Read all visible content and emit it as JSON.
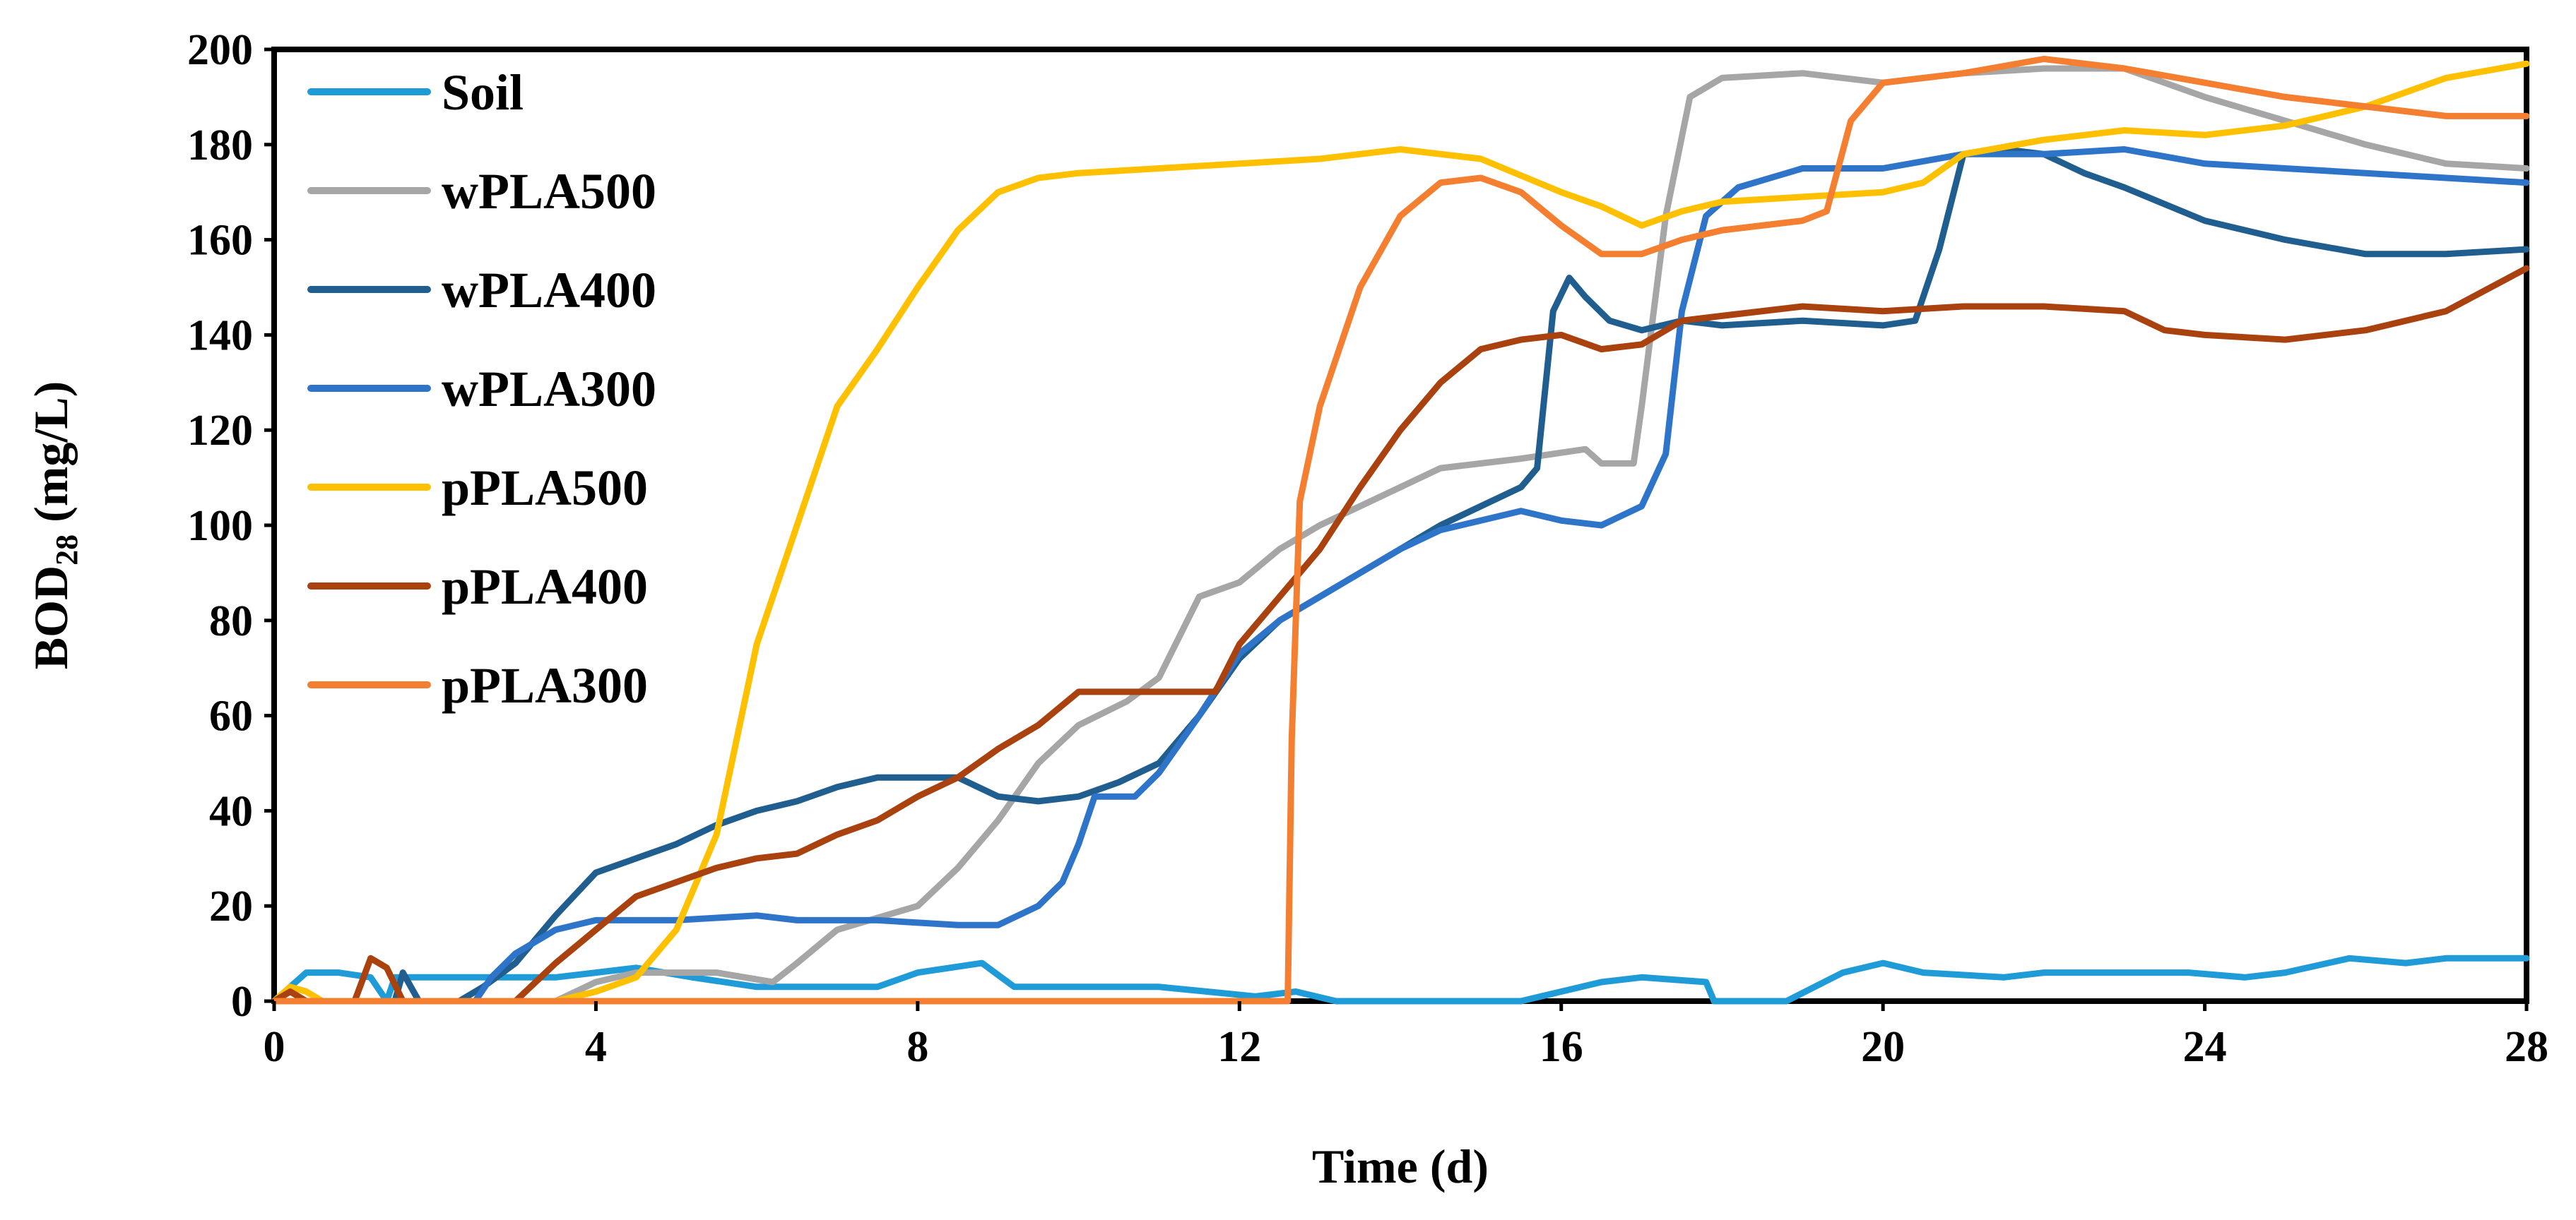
{
  "chart_data": {
    "type": "line",
    "title": "",
    "xlabel": "Time (d)",
    "ylabel": {
      "main": "BOD",
      "subscript": "28",
      "unit": " (mg/L)"
    },
    "xlim": [
      0,
      28
    ],
    "ylim": [
      0,
      200
    ],
    "x_ticks": [
      "0",
      "4",
      "8",
      "12",
      "16",
      "20",
      "24",
      "28"
    ],
    "y_ticks": [
      "0",
      "20",
      "40",
      "60",
      "80",
      "100",
      "120",
      "140",
      "160",
      "180",
      "200"
    ],
    "grid": false,
    "legend_position": "top-left",
    "series": [
      {
        "name": "Soil",
        "color": "#1F9BD7",
        "points": [
          [
            0,
            0
          ],
          [
            0.2,
            3
          ],
          [
            0.4,
            6
          ],
          [
            0.8,
            6
          ],
          [
            1.2,
            5
          ],
          [
            1.4,
            0
          ],
          [
            1.5,
            5
          ],
          [
            3.5,
            5
          ],
          [
            4.0,
            6
          ],
          [
            4.5,
            7
          ],
          [
            5.2,
            5
          ],
          [
            6.0,
            3
          ],
          [
            7.5,
            3
          ],
          [
            8.0,
            6
          ],
          [
            8.8,
            8
          ],
          [
            9.2,
            3
          ],
          [
            10,
            3
          ],
          [
            11,
            3
          ],
          [
            11.6,
            2
          ],
          [
            12.2,
            1
          ],
          [
            12.7,
            2
          ],
          [
            13.2,
            0
          ],
          [
            15.5,
            0
          ],
          [
            16.5,
            4
          ],
          [
            17.0,
            5
          ],
          [
            17.8,
            4
          ],
          [
            17.9,
            0
          ],
          [
            18.8,
            0
          ],
          [
            19.5,
            6
          ],
          [
            20.0,
            8
          ],
          [
            20.5,
            6
          ],
          [
            21.5,
            5
          ],
          [
            22.0,
            6
          ],
          [
            23.8,
            6
          ],
          [
            24.5,
            5
          ],
          [
            25.0,
            6
          ],
          [
            25.8,
            9
          ],
          [
            26.5,
            8
          ],
          [
            27.0,
            9
          ],
          [
            28,
            9
          ]
        ]
      },
      {
        "name": "wPLA500",
        "color": "#A6A6A6",
        "points": [
          [
            0,
            0
          ],
          [
            3.5,
            0
          ],
          [
            4.0,
            4
          ],
          [
            4.5,
            6
          ],
          [
            5.5,
            6
          ],
          [
            6.2,
            4
          ],
          [
            6.5,
            8
          ],
          [
            7.0,
            15
          ],
          [
            8.0,
            20
          ],
          [
            8.5,
            28
          ],
          [
            9.0,
            38
          ],
          [
            9.5,
            50
          ],
          [
            10.0,
            58
          ],
          [
            10.6,
            63
          ],
          [
            11.0,
            68
          ],
          [
            11.5,
            85
          ],
          [
            12.0,
            88
          ],
          [
            12.5,
            95
          ],
          [
            13.0,
            100
          ],
          [
            13.5,
            104
          ],
          [
            14.0,
            108
          ],
          [
            14.5,
            112
          ],
          [
            15.5,
            114
          ],
          [
            16.3,
            116
          ],
          [
            16.5,
            113
          ],
          [
            16.9,
            113
          ],
          [
            17.0,
            125
          ],
          [
            17.3,
            165
          ],
          [
            17.6,
            190
          ],
          [
            18.0,
            194
          ],
          [
            19.0,
            195
          ],
          [
            20,
            193
          ],
          [
            21,
            195
          ],
          [
            22,
            196
          ],
          [
            23,
            196
          ],
          [
            24,
            190
          ],
          [
            25,
            185
          ],
          [
            26,
            180
          ],
          [
            27,
            176
          ],
          [
            28,
            175
          ]
        ]
      },
      {
        "name": "wPLA400",
        "color": "#1F5E8E",
        "points": [
          [
            0,
            0
          ],
          [
            1.5,
            0
          ],
          [
            1.6,
            6
          ],
          [
            1.8,
            0
          ],
          [
            2.3,
            0
          ],
          [
            2.6,
            3
          ],
          [
            3,
            8
          ],
          [
            3.5,
            18
          ],
          [
            4.0,
            27
          ],
          [
            4.5,
            30
          ],
          [
            5.0,
            33
          ],
          [
            5.5,
            37
          ],
          [
            6.0,
            40
          ],
          [
            6.5,
            42
          ],
          [
            7.0,
            45
          ],
          [
            7.5,
            47
          ],
          [
            8.5,
            47
          ],
          [
            9.0,
            43
          ],
          [
            9.5,
            42
          ],
          [
            10.0,
            43
          ],
          [
            10.5,
            46
          ],
          [
            11,
            50
          ],
          [
            11.5,
            60
          ],
          [
            12,
            72
          ],
          [
            12.5,
            80
          ],
          [
            13,
            85
          ],
          [
            13.5,
            90
          ],
          [
            14,
            95
          ],
          [
            14.5,
            100
          ],
          [
            15,
            104
          ],
          [
            15.5,
            108
          ],
          [
            15.7,
            112
          ],
          [
            15.9,
            145
          ],
          [
            16.1,
            152
          ],
          [
            16.3,
            148
          ],
          [
            16.6,
            143
          ],
          [
            17.0,
            141
          ],
          [
            17.5,
            143
          ],
          [
            18,
            142
          ],
          [
            19,
            143
          ],
          [
            20,
            142
          ],
          [
            20.4,
            143
          ],
          [
            20.7,
            158
          ],
          [
            21.0,
            178
          ],
          [
            21.5,
            179
          ],
          [
            22,
            178
          ],
          [
            22.5,
            174
          ],
          [
            23,
            171
          ],
          [
            24,
            164
          ],
          [
            25,
            160
          ],
          [
            26,
            157
          ],
          [
            27,
            157
          ],
          [
            28,
            158
          ]
        ]
      },
      {
        "name": "wPLA300",
        "color": "#2E75C9",
        "points": [
          [
            0,
            0
          ],
          [
            2.5,
            0
          ],
          [
            2.7,
            5
          ],
          [
            3.0,
            10
          ],
          [
            3.5,
            15
          ],
          [
            4.0,
            17
          ],
          [
            5,
            17
          ],
          [
            6,
            18
          ],
          [
            6.5,
            17
          ],
          [
            7.5,
            17
          ],
          [
            8.5,
            16
          ],
          [
            9.0,
            16
          ],
          [
            9.5,
            20
          ],
          [
            9.8,
            25
          ],
          [
            10.0,
            33
          ],
          [
            10.2,
            43
          ],
          [
            10.7,
            43
          ],
          [
            11,
            48
          ],
          [
            11.5,
            60
          ],
          [
            12,
            73
          ],
          [
            12.5,
            80
          ],
          [
            13,
            85
          ],
          [
            13.5,
            90
          ],
          [
            14,
            95
          ],
          [
            14.5,
            99
          ],
          [
            15.0,
            101
          ],
          [
            15.5,
            103
          ],
          [
            16,
            101
          ],
          [
            16.5,
            100
          ],
          [
            17.0,
            104
          ],
          [
            17.3,
            115
          ],
          [
            17.5,
            145
          ],
          [
            17.8,
            165
          ],
          [
            18.2,
            171
          ],
          [
            19.0,
            175
          ],
          [
            20,
            175
          ],
          [
            21,
            178
          ],
          [
            22,
            178
          ],
          [
            23,
            179
          ],
          [
            24,
            176
          ],
          [
            25,
            175
          ],
          [
            26,
            174
          ],
          [
            27,
            173
          ],
          [
            28,
            172
          ]
        ]
      },
      {
        "name": "pPLA500",
        "color": "#FFC000",
        "points": [
          [
            0,
            0
          ],
          [
            0.2,
            3
          ],
          [
            0.4,
            2
          ],
          [
            0.6,
            0
          ],
          [
            3.5,
            0
          ],
          [
            4.0,
            2
          ],
          [
            4.5,
            5
          ],
          [
            5.0,
            15
          ],
          [
            5.5,
            35
          ],
          [
            6.0,
            75
          ],
          [
            6.5,
            100
          ],
          [
            7.0,
            125
          ],
          [
            7.5,
            137
          ],
          [
            8.0,
            150
          ],
          [
            8.5,
            162
          ],
          [
            9.0,
            170
          ],
          [
            9.5,
            173
          ],
          [
            10,
            174
          ],
          [
            11,
            175
          ],
          [
            12,
            176
          ],
          [
            13,
            177
          ],
          [
            14,
            179
          ],
          [
            15,
            177
          ],
          [
            16,
            170
          ],
          [
            16.5,
            167
          ],
          [
            17.0,
            163
          ],
          [
            17.5,
            166
          ],
          [
            18,
            168
          ],
          [
            19,
            169
          ],
          [
            20,
            170
          ],
          [
            20.5,
            172
          ],
          [
            21,
            178
          ],
          [
            22,
            181
          ],
          [
            23,
            183
          ],
          [
            24,
            182
          ],
          [
            25,
            184
          ],
          [
            26,
            188
          ],
          [
            27,
            194
          ],
          [
            28,
            197
          ]
        ]
      },
      {
        "name": "pPLA400",
        "color": "#A9420E",
        "points": [
          [
            0,
            0
          ],
          [
            0.2,
            2
          ],
          [
            0.4,
            0
          ],
          [
            1.0,
            0
          ],
          [
            1.2,
            9
          ],
          [
            1.4,
            7
          ],
          [
            1.6,
            0
          ],
          [
            3.0,
            0
          ],
          [
            3.5,
            8
          ],
          [
            4.0,
            15
          ],
          [
            4.5,
            22
          ],
          [
            5.0,
            25
          ],
          [
            5.5,
            28
          ],
          [
            6.0,
            30
          ],
          [
            6.5,
            31
          ],
          [
            7.0,
            35
          ],
          [
            7.5,
            38
          ],
          [
            8.0,
            43
          ],
          [
            8.5,
            47
          ],
          [
            9.0,
            53
          ],
          [
            9.5,
            58
          ],
          [
            10.0,
            65
          ],
          [
            10.5,
            65
          ],
          [
            11.0,
            65
          ],
          [
            11.7,
            65
          ],
          [
            12.0,
            75
          ],
          [
            12.5,
            85
          ],
          [
            13,
            95
          ],
          [
            13.5,
            108
          ],
          [
            14,
            120
          ],
          [
            14.5,
            130
          ],
          [
            15,
            137
          ],
          [
            15.5,
            139
          ],
          [
            16.0,
            140
          ],
          [
            16.5,
            137
          ],
          [
            17.0,
            138
          ],
          [
            17.5,
            143
          ],
          [
            18,
            144
          ],
          [
            19,
            146
          ],
          [
            20,
            145
          ],
          [
            21,
            146
          ],
          [
            22,
            146
          ],
          [
            23,
            145
          ],
          [
            23.5,
            141
          ],
          [
            24,
            140
          ],
          [
            25,
            139
          ],
          [
            26,
            141
          ],
          [
            27,
            145
          ],
          [
            28,
            154
          ]
        ]
      },
      {
        "name": "pPLA300",
        "color": "#F47F31",
        "points": [
          [
            0,
            0
          ],
          [
            12.6,
            0
          ],
          [
            12.65,
            55
          ],
          [
            12.75,
            105
          ],
          [
            13.0,
            125
          ],
          [
            13.5,
            150
          ],
          [
            14.0,
            165
          ],
          [
            14.5,
            172
          ],
          [
            15.0,
            173
          ],
          [
            15.5,
            170
          ],
          [
            16.0,
            163
          ],
          [
            16.5,
            157
          ],
          [
            17.0,
            157
          ],
          [
            17.5,
            160
          ],
          [
            18,
            162
          ],
          [
            19,
            164
          ],
          [
            19.3,
            166
          ],
          [
            19.6,
            185
          ],
          [
            20,
            193
          ],
          [
            21,
            195
          ],
          [
            22,
            198
          ],
          [
            23,
            196
          ],
          [
            24,
            193
          ],
          [
            25,
            190
          ],
          [
            26,
            188
          ],
          [
            27,
            186
          ],
          [
            28,
            186
          ]
        ]
      }
    ]
  }
}
